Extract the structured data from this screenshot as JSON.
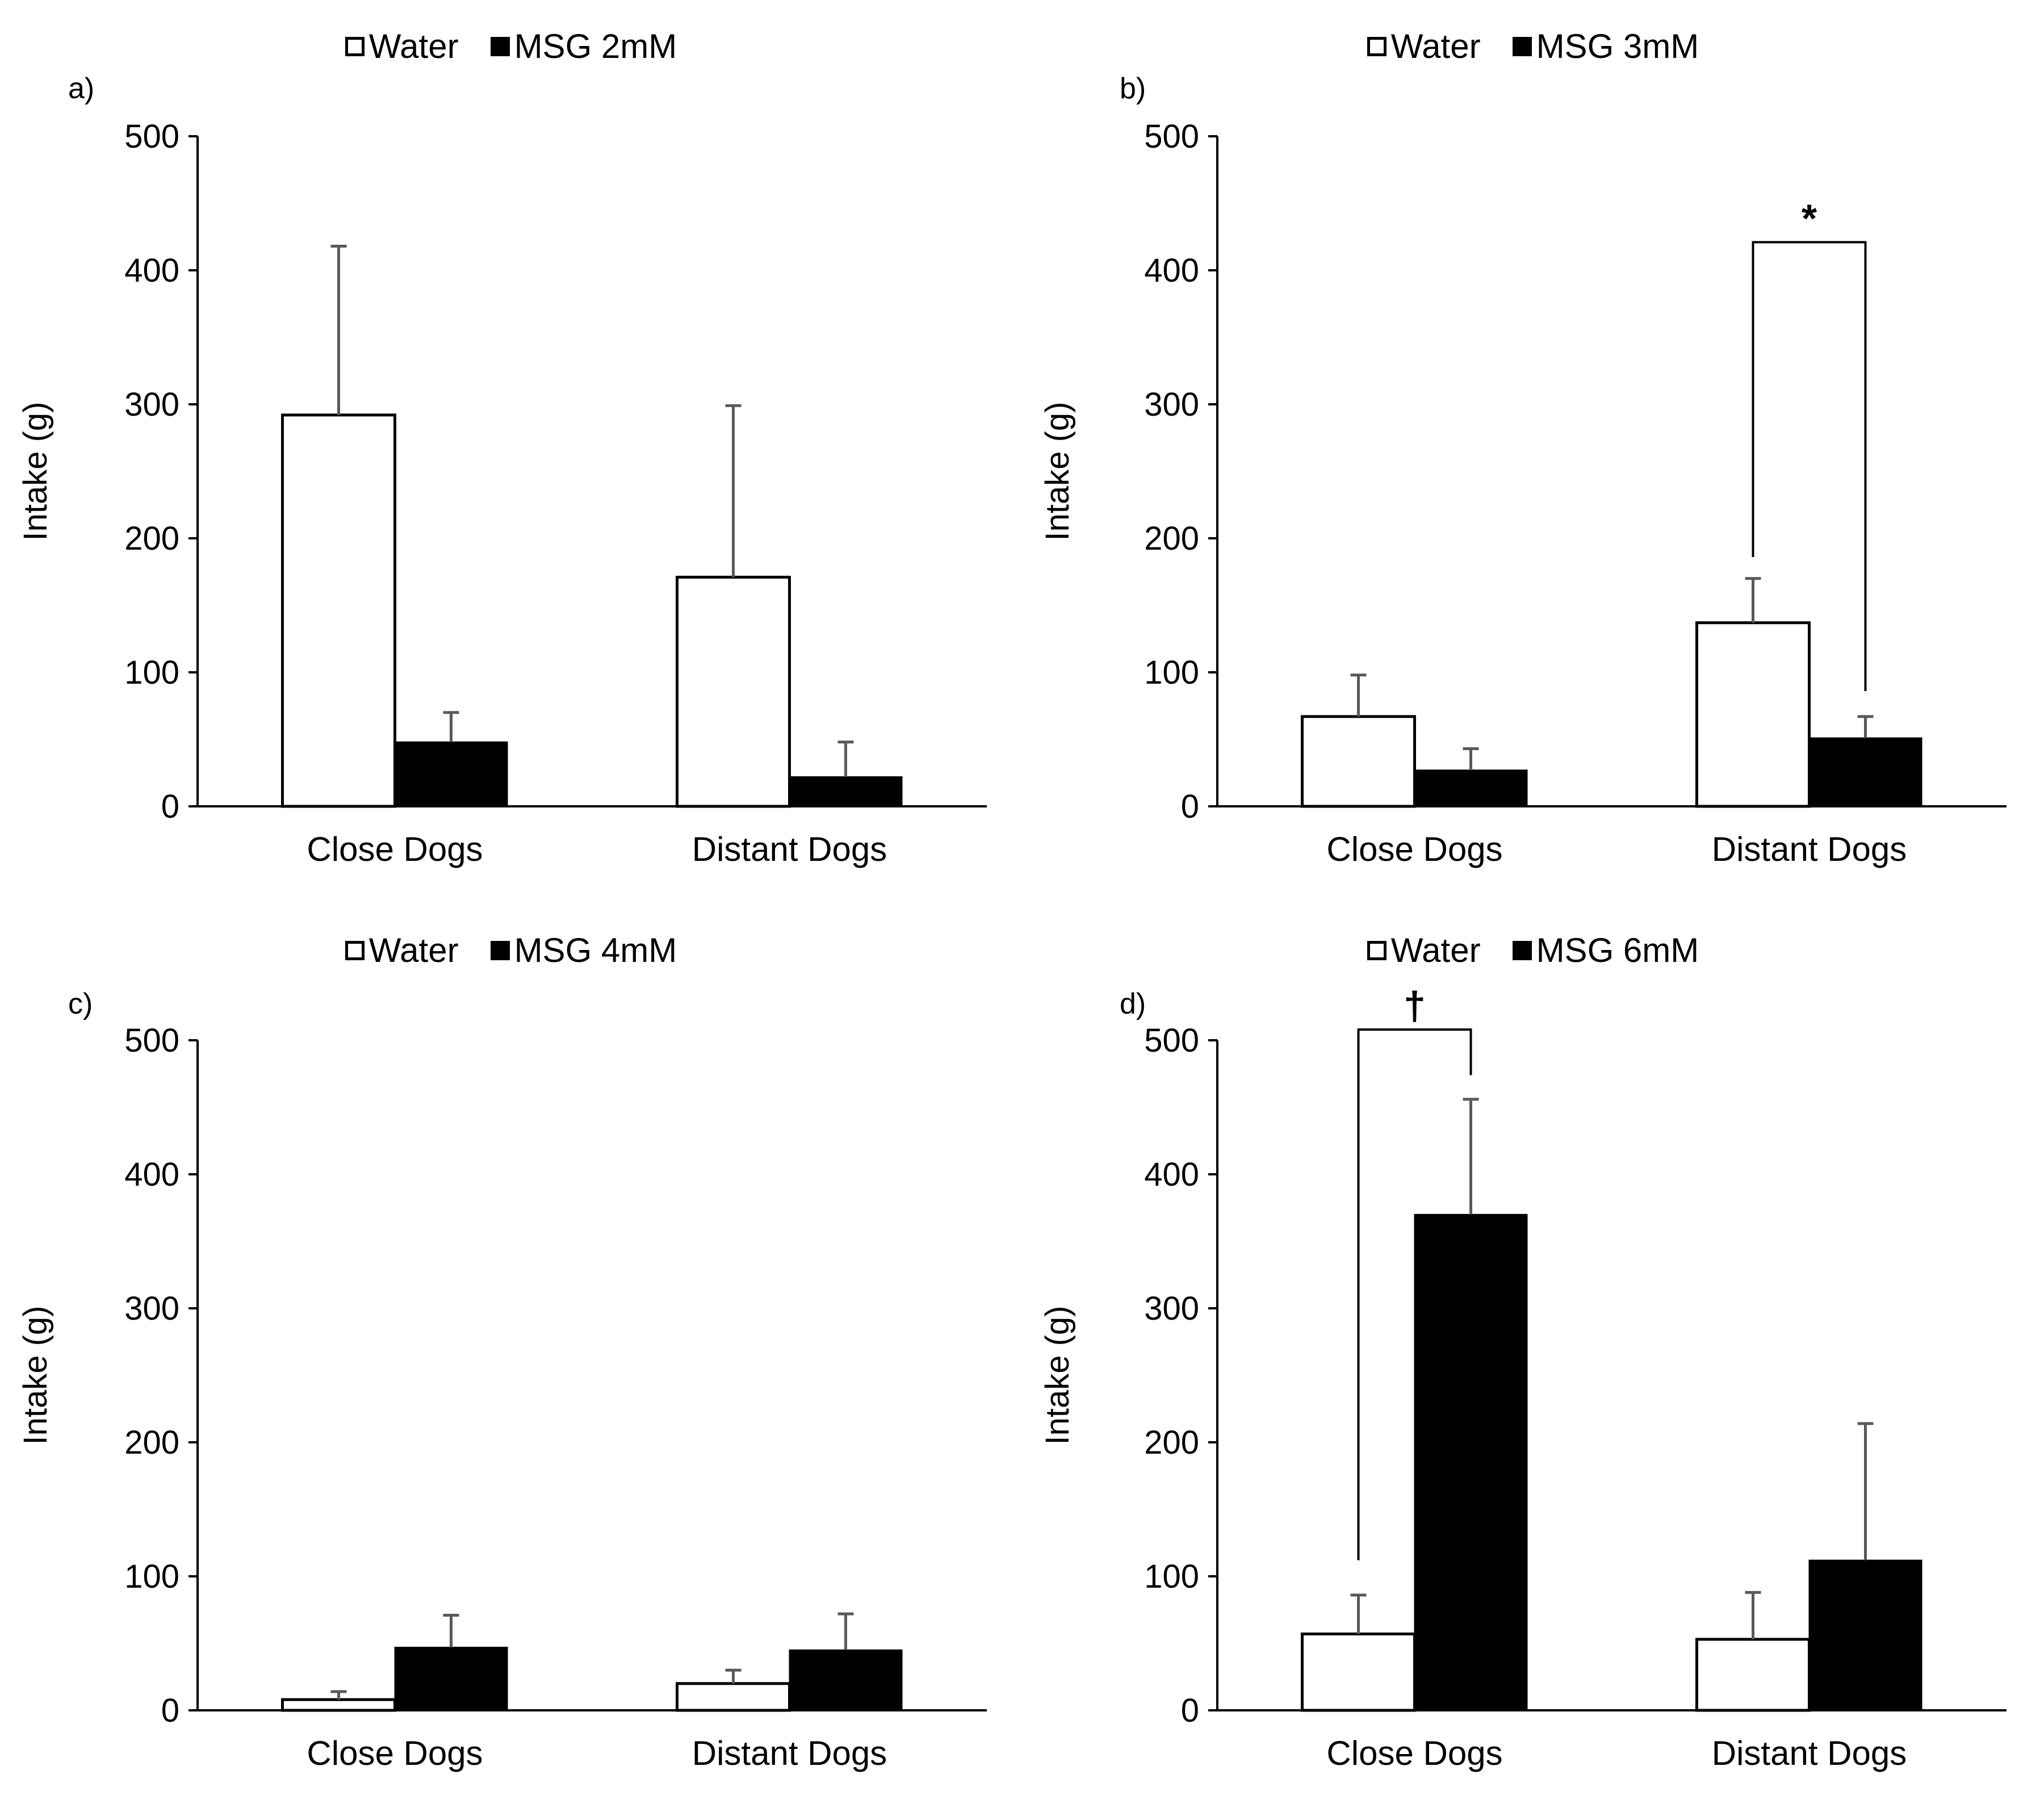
{
  "chart_data": [
    {
      "type": "bar",
      "panel_label": "a)",
      "title": "",
      "xlabel": "",
      "ylabel": "Intake (g)",
      "ylim": [
        0,
        500
      ],
      "yticks": [
        0,
        100,
        200,
        300,
        400,
        500
      ],
      "categories": [
        "Close Dogs",
        "Distant Dogs"
      ],
      "legend_position": "top-center",
      "series": [
        {
          "name": "Water",
          "color": "#ffffff",
          "values": [
            292,
            171
          ],
          "error": [
            126,
            128
          ]
        },
        {
          "name": "MSG 2mM",
          "color": "#000000",
          "values": [
            48,
            22
          ],
          "error": [
            22,
            26
          ]
        }
      ],
      "annotations": []
    },
    {
      "type": "bar",
      "panel_label": "b)",
      "title": "",
      "xlabel": "",
      "ylabel": "Intake (g)",
      "ylim": [
        0,
        500
      ],
      "yticks": [
        0,
        100,
        200,
        300,
        400,
        500
      ],
      "categories": [
        "Close Dogs",
        "Distant Dogs"
      ],
      "legend_position": "top-center",
      "series": [
        {
          "name": "Water",
          "color": "#ffffff",
          "values": [
            67,
            137
          ],
          "error": [
            31,
            33
          ]
        },
        {
          "name": "MSG 3mM",
          "color": "#000000",
          "values": [
            27,
            51
          ],
          "error": [
            16,
            16
          ]
        }
      ],
      "annotations": [
        {
          "text": "*",
          "category": "Distant Dogs",
          "from_series": 0,
          "to_series": 1,
          "bracket_value": 421,
          "left_end_value": 186,
          "right_end_value": 86
        }
      ]
    },
    {
      "type": "bar",
      "panel_label": "c)",
      "title": "",
      "xlabel": "",
      "ylabel": "Intake (g)",
      "ylim": [
        0,
        500
      ],
      "yticks": [
        0,
        100,
        200,
        300,
        400,
        500
      ],
      "categories": [
        "Close Dogs",
        "Distant Dogs"
      ],
      "legend_position": "top-center",
      "series": [
        {
          "name": "Water",
          "color": "#ffffff",
          "values": [
            8,
            20
          ],
          "error": [
            6,
            10
          ]
        },
        {
          "name": "MSG 4mM",
          "color": "#000000",
          "values": [
            47,
            45
          ],
          "error": [
            24,
            27
          ]
        }
      ],
      "annotations": []
    },
    {
      "type": "bar",
      "panel_label": "d)",
      "title": "",
      "xlabel": "",
      "ylabel": "Intake (g)",
      "ylim": [
        0,
        500
      ],
      "yticks": [
        0,
        100,
        200,
        300,
        400,
        500
      ],
      "categories": [
        "Close Dogs",
        "Distant Dogs"
      ],
      "legend_position": "top-center",
      "series": [
        {
          "name": "Water",
          "color": "#ffffff",
          "values": [
            57,
            53
          ],
          "error": [
            29,
            35
          ]
        },
        {
          "name": "MSG 6mM",
          "color": "#000000",
          "values": [
            370,
            112
          ],
          "error": [
            86,
            102
          ]
        }
      ],
      "annotations": [
        {
          "text": "†",
          "category": "Close Dogs",
          "from_series": 0,
          "to_series": 1,
          "bracket_value": 508,
          "left_end_value": 112,
          "right_end_value": 474
        }
      ]
    }
  ]
}
